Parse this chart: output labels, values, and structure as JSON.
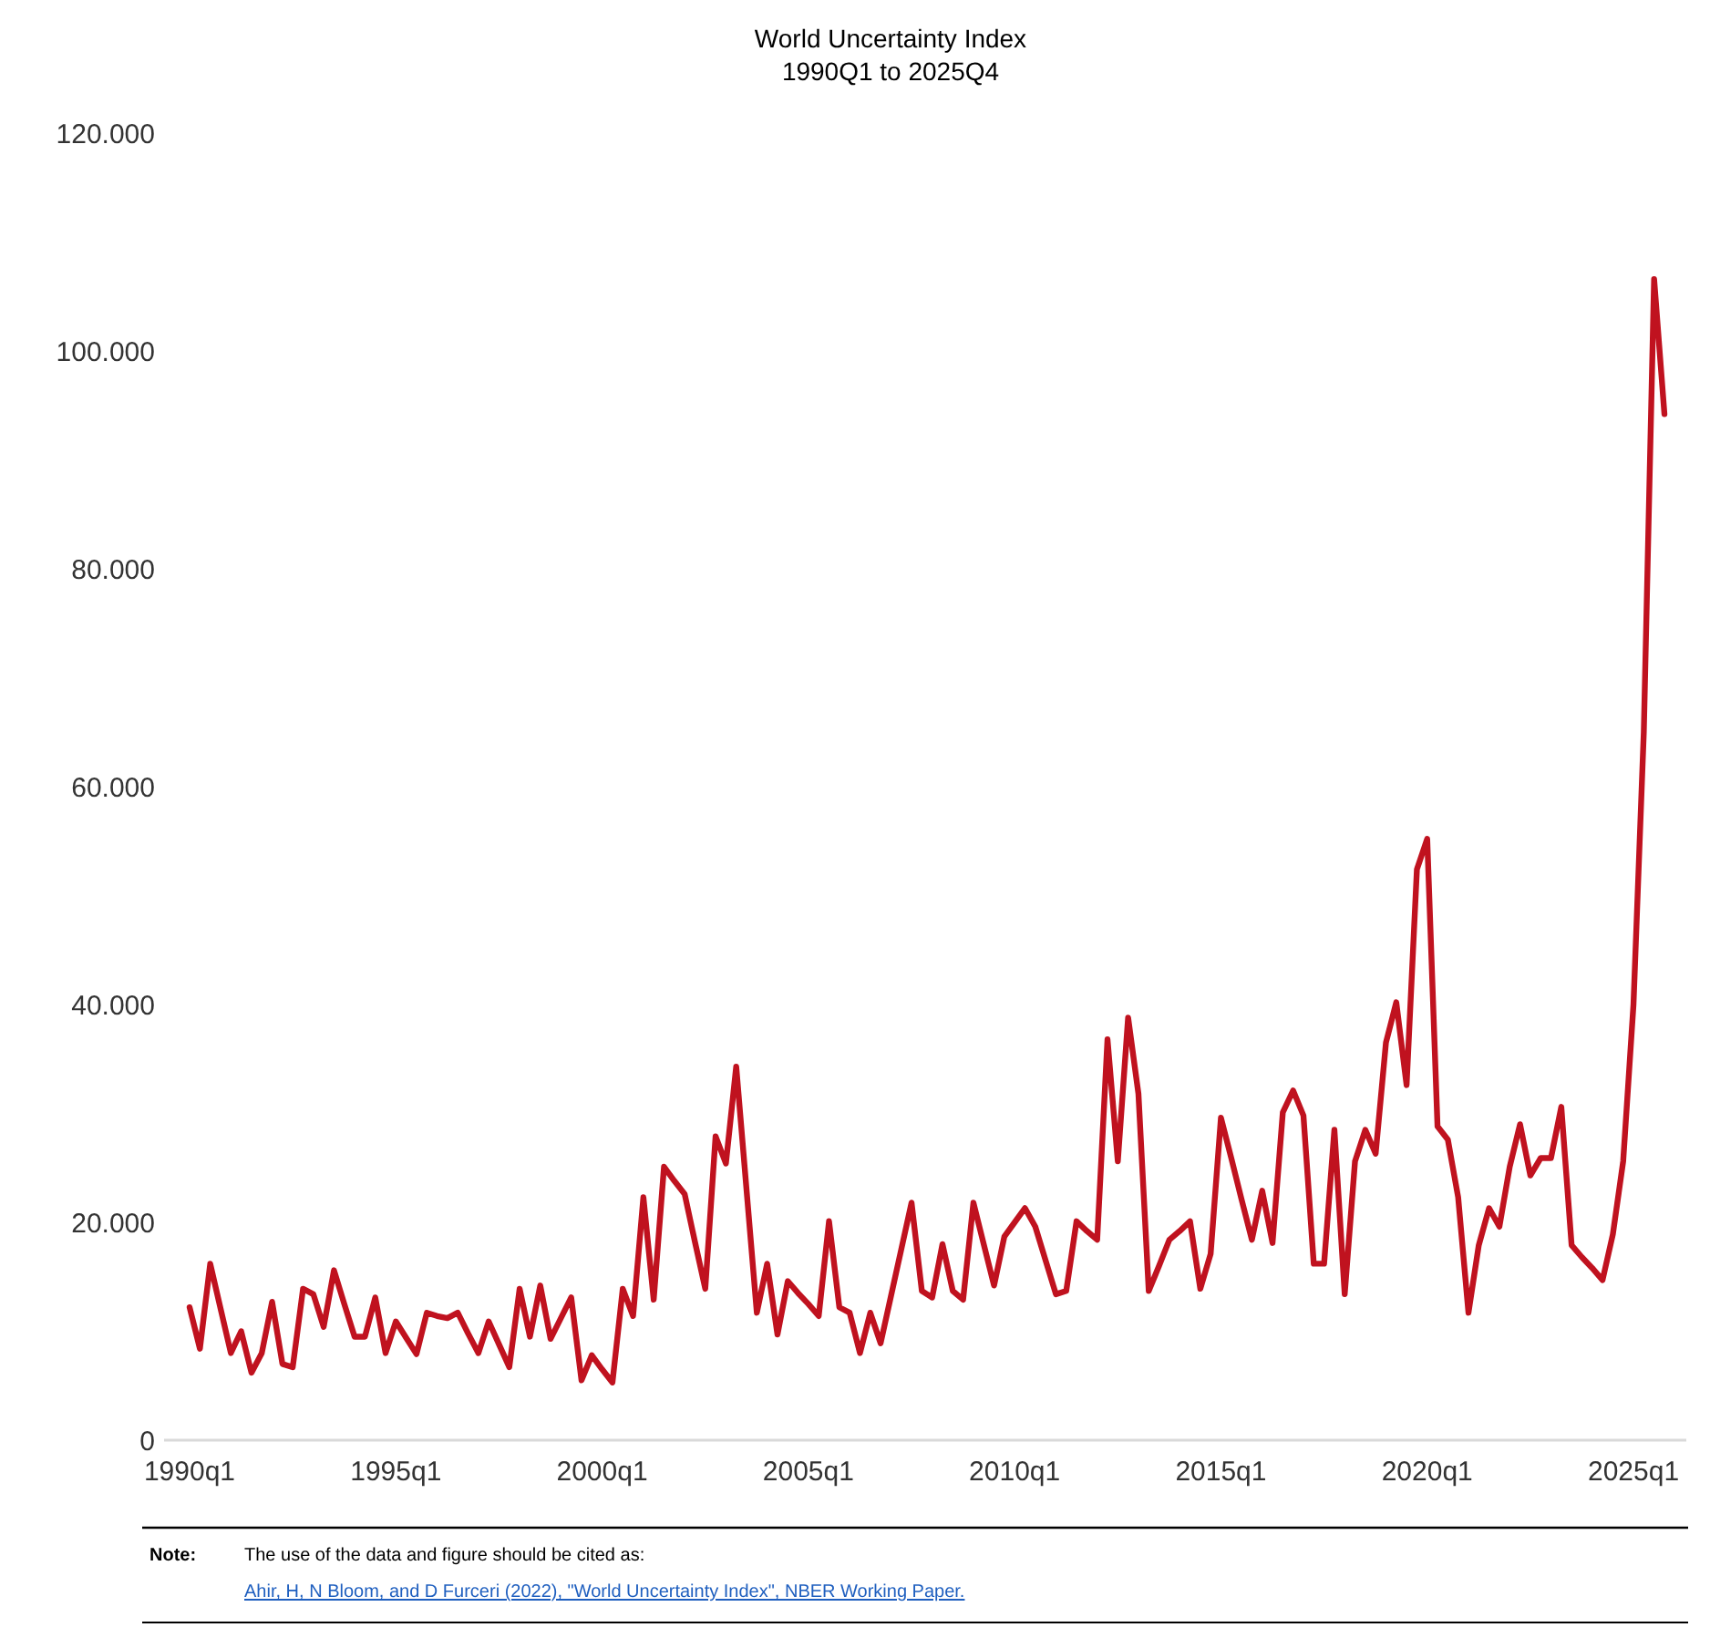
{
  "chart_data": {
    "type": "line",
    "title": "World Uncertainty Index",
    "subtitle": "1990Q1 to 2025Q4",
    "annotations": [
      "Note:",
      "The use of the data and figure should be cited as:",
      "Ahir, H, N Bloom, and D Furceri (2022), \"World Uncertainty Index\", NBER Working Paper."
    ],
    "categories": [
      "1990q1",
      null,
      null,
      null,
      null,
      null,
      null,
      null,
      null,
      null,
      null,
      null,
      null,
      null,
      null,
      null,
      null,
      null,
      null,
      null,
      "1995q1",
      null,
      null,
      null,
      null,
      null,
      null,
      null,
      null,
      null,
      null,
      null,
      null,
      null,
      null,
      null,
      null,
      null,
      null,
      null,
      "2000q1",
      null,
      null,
      null,
      null,
      null,
      null,
      null,
      null,
      null,
      null,
      null,
      null,
      null,
      null,
      null,
      null,
      null,
      null,
      null,
      "2005q1",
      null,
      null,
      null,
      null,
      null,
      null,
      null,
      null,
      null,
      null,
      null,
      null,
      null,
      null,
      null,
      null,
      null,
      null,
      null,
      "2010q1",
      null,
      null,
      null,
      null,
      null,
      null,
      null,
      null,
      null,
      null,
      null,
      null,
      null,
      null,
      null,
      null,
      null,
      null,
      null,
      "2015q1",
      null,
      null,
      null,
      null,
      null,
      null,
      null,
      null,
      null,
      null,
      null,
      null,
      null,
      null,
      null,
      null,
      null,
      null,
      null,
      "2020q1",
      null,
      null,
      null,
      null,
      null,
      null,
      null,
      null,
      null,
      null,
      null,
      null,
      null,
      null,
      null,
      null,
      null,
      null,
      null,
      "2025q1",
      null,
      null,
      null
    ],
    "ylim": [
      0,
      120000
    ],
    "yticks": [
      0,
      {
        "value": 20000,
        "label": "20.000"
      },
      {
        "value": 40000,
        "label": "40.000"
      },
      {
        "value": 60000,
        "label": "60.000"
      },
      {
        "value": 80000,
        "label": "80.000"
      },
      {
        "value": 100000,
        "label": "100.000"
      },
      {
        "value": 120000,
        "label": "120.000"
      }
    ],
    "grid": false,
    "marker": "none",
    "line_style": "solid",
    "series": [
      {
        "color": "#c0121f",
        "values": [
          12200,
          8400,
          16200,
          12100,
          8000,
          10000,
          6200,
          8000,
          12700,
          7000,
          6700,
          13900,
          13400,
          10400,
          15600,
          12500,
          9500,
          9500,
          13100,
          8000,
          10900,
          9400,
          7900,
          11700,
          11400,
          11200,
          11700,
          9800,
          8000,
          10900,
          8800,
          6700,
          13900,
          9500,
          14200,
          9300,
          11200,
          13100,
          5500,
          7800,
          6500,
          5300,
          13900,
          11400,
          22300,
          12900,
          25100,
          23800,
          22600,
          18200,
          13900,
          27900,
          25400,
          34300,
          23000,
          11700,
          16200,
          9700,
          14600,
          13500,
          12500,
          11400,
          20100,
          12200,
          11700,
          8000,
          11700,
          8900,
          13200,
          17500,
          21800,
          13700,
          13100,
          18000,
          13700,
          12900,
          21800,
          18000,
          14200,
          18700,
          20000,
          21300,
          19600,
          16500,
          13400,
          13700,
          20100,
          19200,
          18400,
          36800,
          25600,
          38800,
          31800,
          13700,
          16000,
          18400,
          19200,
          20100,
          13900,
          17100,
          29600,
          25900,
          22100,
          18400,
          22900,
          18100,
          30100,
          32100,
          29800,
          16200,
          16200,
          28500,
          13400,
          25600,
          28500,
          26300,
          36500,
          40200,
          32600,
          52400,
          55200,
          28800,
          27600,
          22300,
          11700,
          17900,
          21300,
          19600,
          25100,
          29000,
          24300,
          25900,
          25900,
          30600,
          17900,
          16800,
          15800,
          14700,
          18900,
          25600,
          40000,
          65000,
          106600,
          94200
        ]
      }
    ]
  }
}
